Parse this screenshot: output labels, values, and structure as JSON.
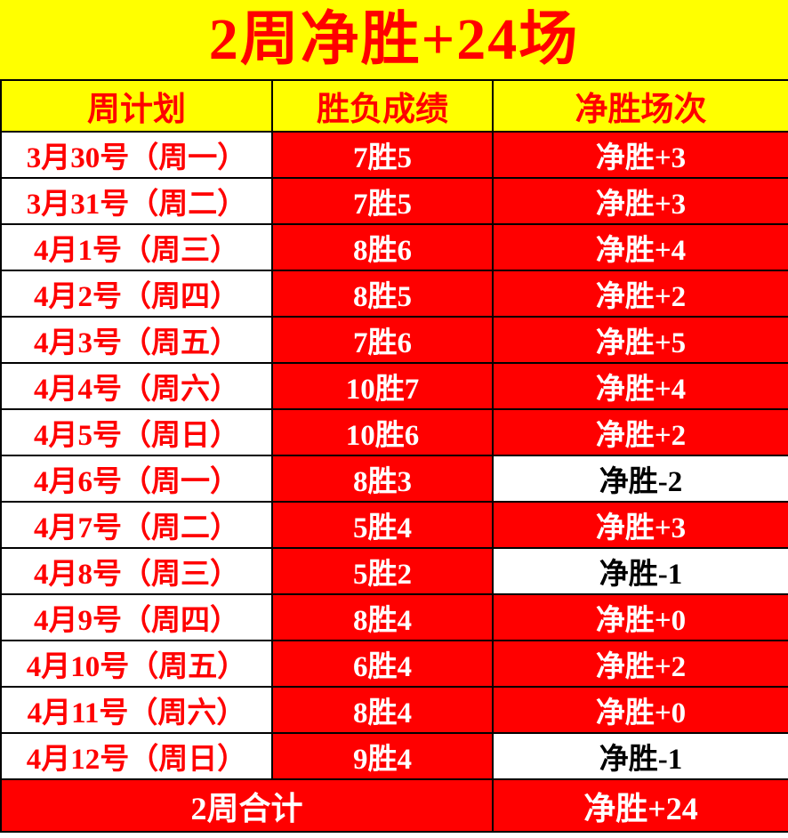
{
  "title": "2周净胜+24场",
  "colors": {
    "yellow": "#FFFF00",
    "red": "#FF0000",
    "white": "#FFFFFF",
    "black": "#000000"
  },
  "table": {
    "headers": [
      "周计划",
      "胜负成绩",
      "净胜场次"
    ],
    "rows": [
      {
        "date": "3月30号（周一）",
        "score": "7胜5",
        "net": "净胜+3",
        "negative": false
      },
      {
        "date": "3月31号（周二）",
        "score": "7胜5",
        "net": "净胜+3",
        "negative": false
      },
      {
        "date": "4月1号（周三）",
        "score": "8胜6",
        "net": "净胜+4",
        "negative": false
      },
      {
        "date": "4月2号（周四）",
        "score": "8胜5",
        "net": "净胜+2",
        "negative": false
      },
      {
        "date": "4月3号（周五）",
        "score": "7胜6",
        "net": "净胜+5",
        "negative": false
      },
      {
        "date": "4月4号（周六）",
        "score": "10胜7",
        "net": "净胜+4",
        "negative": false
      },
      {
        "date": "4月5号（周日）",
        "score": "10胜6",
        "net": "净胜+2",
        "negative": false
      },
      {
        "date": "4月6号（周一）",
        "score": "8胜3",
        "net": "净胜-2",
        "negative": true
      },
      {
        "date": "4月7号（周二）",
        "score": "5胜4",
        "net": "净胜+3",
        "negative": false
      },
      {
        "date": "4月8号（周三）",
        "score": "5胜2",
        "net": "净胜-1",
        "negative": true
      },
      {
        "date": "4月9号（周四）",
        "score": "8胜4",
        "net": "净胜+0",
        "negative": false
      },
      {
        "date": "4月10号（周五）",
        "score": "6胜4",
        "net": "净胜+2",
        "negative": false
      },
      {
        "date": "4月11号（周六）",
        "score": "8胜4",
        "net": "净胜+0",
        "negative": false
      },
      {
        "date": "4月12号（周日）",
        "score": "9胜4",
        "net": "净胜-1",
        "negative": true
      }
    ],
    "footer": {
      "label": "2周合计",
      "net": "净胜+24"
    }
  }
}
